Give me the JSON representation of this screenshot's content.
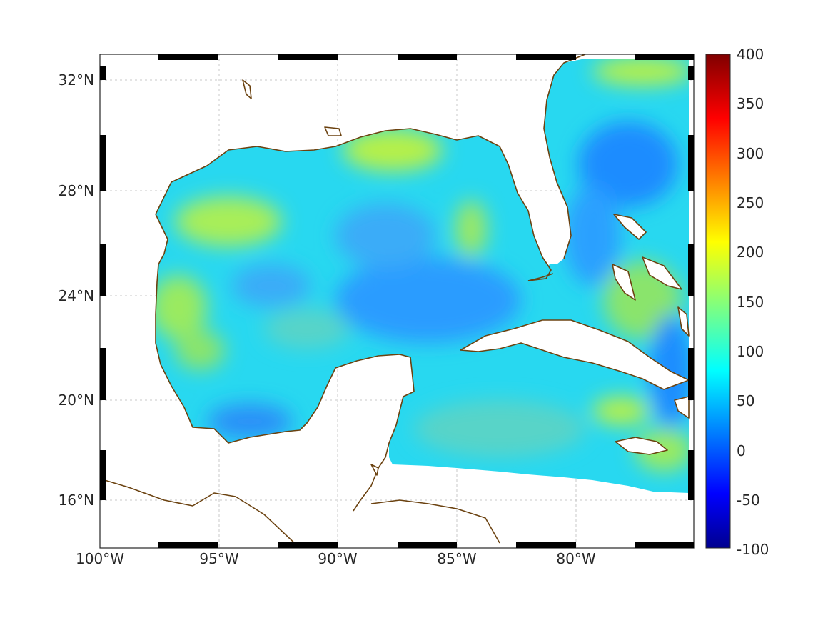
{
  "map": {
    "lat_labels": [
      "32°N",
      "28°N",
      "24°N",
      "20°N",
      "16°N"
    ],
    "lon_labels": [
      "100°W",
      "95°W",
      "90°W",
      "85°W",
      "80°W"
    ],
    "colorbar": {
      "ticks": [
        "400",
        "350",
        "300",
        "250",
        "200",
        "150",
        "100",
        "50",
        "0",
        "-50",
        "-100"
      ],
      "range": [
        -100,
        400
      ],
      "colormap": "jet"
    },
    "colors": {
      "coast": "#6b4210",
      "sea_dominant": "#28d8f0",
      "sea_high": "#b6f04a",
      "sea_low": "#1e8cff"
    }
  }
}
